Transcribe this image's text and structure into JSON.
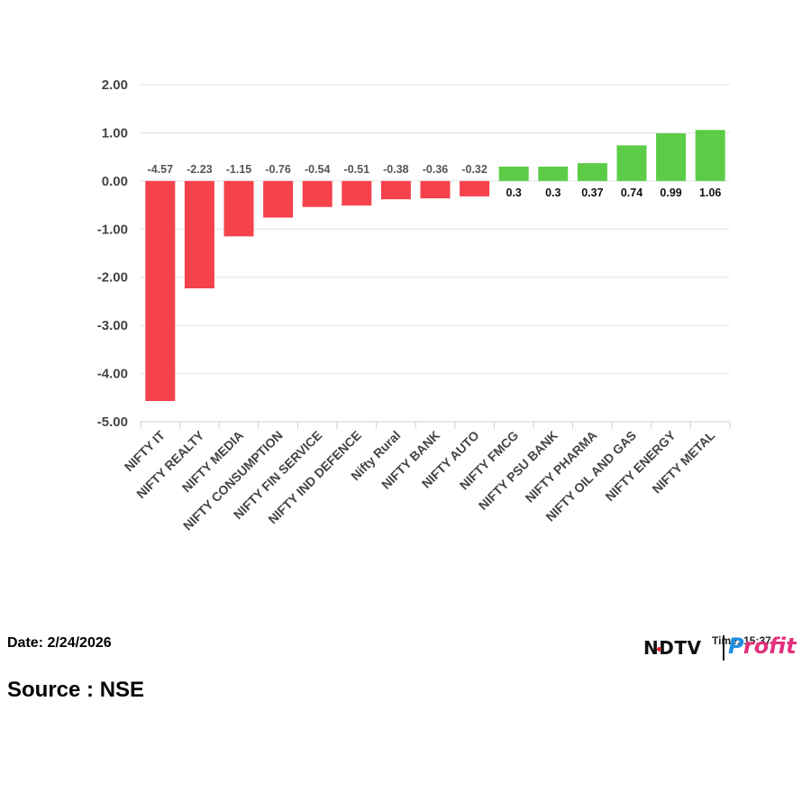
{
  "chart_data": {
    "type": "bar",
    "title": "",
    "xlabel": "",
    "ylabel": "",
    "ylim": [
      -5,
      2
    ],
    "yticks": [
      "2.00",
      "1.00",
      "0.00",
      "-1.00",
      "-2.00",
      "-3.00",
      "-4.00",
      "-5.00"
    ],
    "grid": true,
    "categories": [
      "NIFTY IT",
      "NIFTY REALTY",
      "NIFTY MEDIA",
      "NIFTY CONSUMPTION",
      "NIFTY FIN SERVICE",
      "NIFTY IND DEFENCE",
      "Nifty Rural",
      "NIFTY BANK",
      "NIFTY AUTO",
      "NIFTY FMCG",
      "NIFTY PSU BANK",
      "NIFTY PHARMA",
      "NIFTY OIL AND GAS",
      "NIFTY ENERGY",
      "NIFTY METAL"
    ],
    "values": [
      -4.57,
      -2.23,
      -1.15,
      -0.76,
      -0.54,
      -0.51,
      -0.38,
      -0.36,
      -0.32,
      0.3,
      0.3,
      0.37,
      0.74,
      0.99,
      1.06
    ],
    "data_labels": [
      "-4.57",
      "-2.23",
      "-1.15",
      "-0.76",
      "-0.54",
      "-0.51",
      "-0.38",
      "-0.36",
      "-0.32",
      "0.3",
      "0.3",
      "0.37",
      "0.74",
      "0.99",
      "1.06"
    ],
    "colors": {
      "negative": "#f5424b",
      "positive": "#5ccc47"
    }
  },
  "footer": {
    "date": "Date: 2/24/2026",
    "source": "Source : NSE",
    "time": "Time: 15:37"
  },
  "logo": {
    "brand": "NDTV",
    "product_part1": "P",
    "product_part2": "rofit"
  }
}
